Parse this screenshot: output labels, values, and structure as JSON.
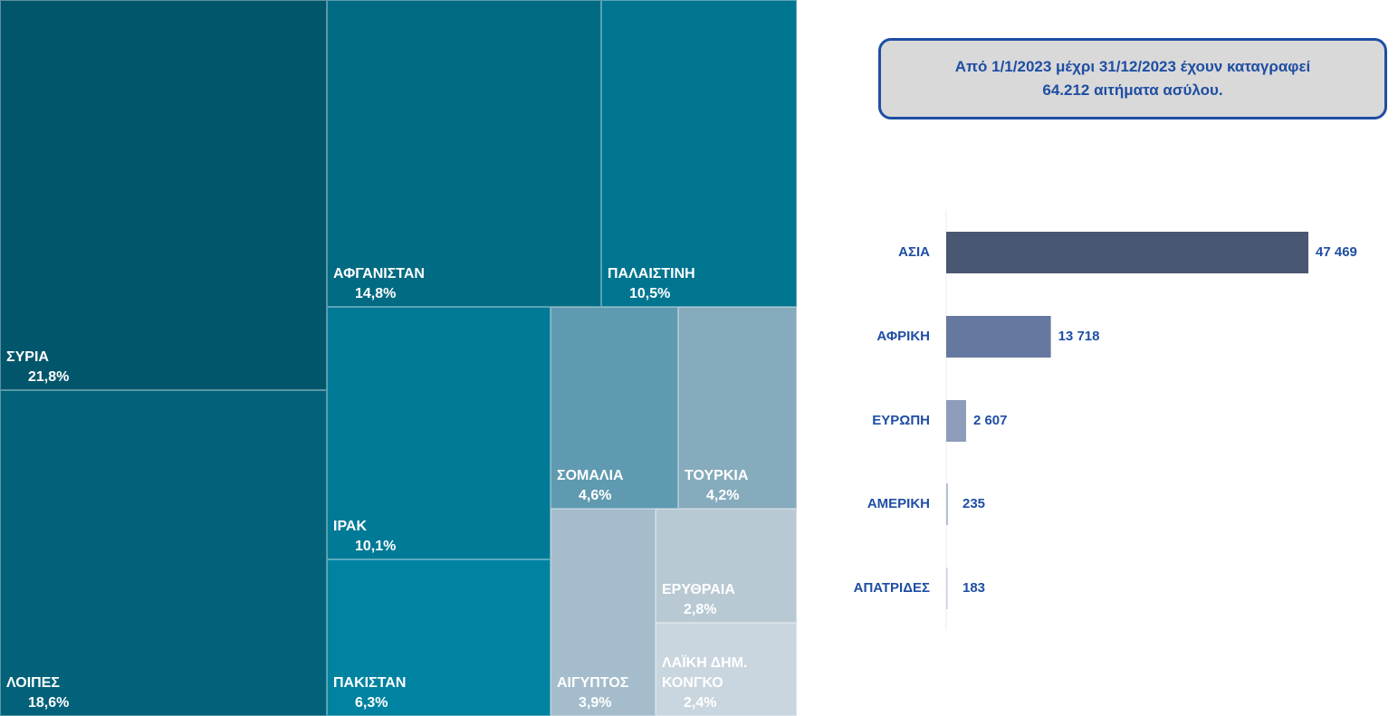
{
  "chart_data": [
    {
      "type": "treemap",
      "categories": [
        "ΣΥΡΙΑ",
        "ΛΟΙΠΕΣ",
        "ΑΦΓΑΝΙΣΤΑΝ",
        "ΠΑΛΑΙΣΤΙΝΗ",
        "ΙΡΑΚ",
        "ΠΑΚΙΣΤΑΝ",
        "ΣΟΜΑΛΙΑ",
        "ΤΟΥΡΚΙΑ",
        "ΑΙΓΥΠΤΟΣ",
        "ΕΡΥΘΡΑΙΑ",
        "ΛΑΪΚΗ ΔΗΜ. ΚΟΝΓΚΟ"
      ],
      "values": [
        21.8,
        18.6,
        14.8,
        10.5,
        10.1,
        6.3,
        4.6,
        4.2,
        3.9,
        2.8,
        2.4
      ],
      "value_labels": [
        "21,8%",
        "18,6%",
        "14,8%",
        "10,5%",
        "10,1%",
        "6,3%",
        "4,6%",
        "4,2%",
        "3,9%",
        "2,8%",
        "2,4%"
      ],
      "colors": [
        "#02566b",
        "#03627a",
        "#006b82",
        "#007590",
        "#007a96",
        "#0083a0",
        "#5f9ab0",
        "#86abbd",
        "#a4bccb",
        "#b8c9d4",
        "#cad6df"
      ]
    },
    {
      "type": "bar",
      "orientation": "horizontal",
      "categories": [
        "ΑΣΙΑ",
        "ΑΦΡΙΚΗ",
        "ΕΥΡΩΠΗ",
        "ΑΜΕΡΙΚΗ",
        "ΑΠΑΤΡΙΔΕΣ"
      ],
      "values": [
        47469,
        13718,
        2607,
        235,
        183
      ],
      "value_labels": [
        "47 469",
        "13 718",
        "2 607",
        "235",
        "183"
      ],
      "colors": [
        "#4a5773",
        "#6578a0",
        "#8d9dbb",
        "#b6c0d4",
        "#c9d1e0"
      ]
    }
  ],
  "info_box": {
    "lines": [
      "Από 1/1/2023 μέχρι 31/12/2023 έχουν καταγραφεί",
      "64.212 αιτήματα ασύλου."
    ]
  }
}
